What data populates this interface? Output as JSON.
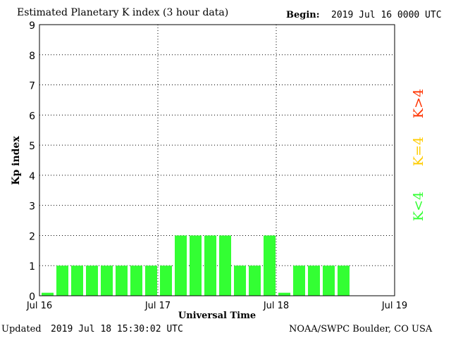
{
  "header": {
    "title": "Estimated Planetary K index (3 hour data)",
    "begin_label": "Begin:",
    "begin_value": "2019 Jul 16 0000 UTC"
  },
  "footer": {
    "updated_label": "Updated",
    "updated_value": "2019 Jul 18 15:30:02 UTC",
    "credit": "NOAA/SWPC Boulder, CO USA"
  },
  "legend": [
    {
      "label": "K>4",
      "color": "#ff3300"
    },
    {
      "label": "K=4",
      "color": "#ffcc00"
    },
    {
      "label": "K<4",
      "color": "#33ff33"
    }
  ],
  "chart_data": {
    "type": "bar",
    "title": "Estimated Planetary K index (3 hour data)",
    "xlabel": "Universal Time",
    "ylabel": "Kp index",
    "ylim": [
      0,
      9
    ],
    "yticks": [
      "0",
      "1",
      "2",
      "3",
      "4",
      "5",
      "6",
      "7",
      "8",
      "9"
    ],
    "xticks": [
      "Jul 16",
      "Jul 17",
      "Jul 18",
      "Jul 19"
    ],
    "interval_hours": 3,
    "bar_color": "#33ff33",
    "grid": true,
    "values": [
      0.1,
      1,
      1,
      1,
      1,
      1,
      1,
      1,
      1,
      2,
      2,
      2,
      2,
      1,
      1,
      2,
      0.1,
      1,
      1,
      1,
      1
    ]
  }
}
